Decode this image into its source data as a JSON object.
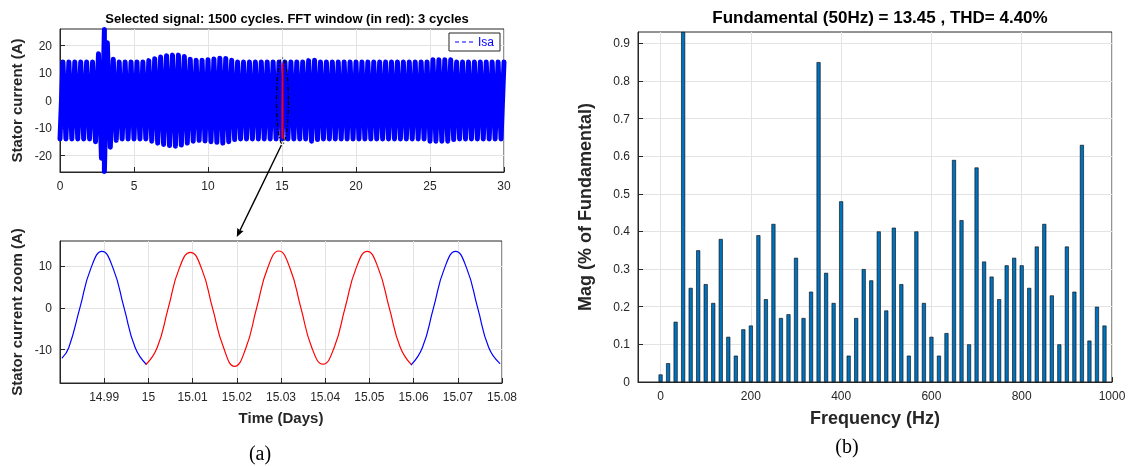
{
  "chart_data": [
    {
      "type": "line",
      "title": "Selected signal: 1500 cycles. FFT window (in red): 3 cycles",
      "ylabel": "Stator current (A)",
      "xlim": [
        0,
        30
      ],
      "xticks": [
        0,
        5,
        10,
        15,
        20,
        25,
        30
      ],
      "ylim": [
        -26,
        26
      ],
      "yticks": [
        -20,
        -10,
        0,
        10,
        20
      ],
      "grid": true,
      "legend": "top right",
      "series": [
        {
          "name": "Isa",
          "color": "#0000ff",
          "x": [
            0,
            0.2,
            0.4,
            0.6,
            0.8,
            1,
            1.2,
            1.4,
            1.6,
            1.8,
            2,
            2.2,
            2.4,
            2.6,
            2.8,
            3,
            3,
            3.2,
            3.4,
            3.6,
            3.8,
            4,
            4.2,
            4.4,
            4.6,
            4.8,
            5,
            5.2,
            5.4,
            5.6,
            5.8,
            6,
            6.2,
            6.4,
            6.6,
            6.8,
            7,
            7.2,
            7.4,
            7.6,
            7.8,
            8,
            8.2,
            8.4,
            8.6,
            8.8,
            9,
            9.2,
            9.4,
            9.6,
            9.8,
            10,
            10.2,
            10.4,
            10.6,
            10.8,
            11,
            11.2,
            11.4,
            11.6,
            11.8,
            12,
            12.2,
            12.4,
            12.6,
            12.8,
            13,
            13.2,
            13.4,
            13.6,
            13.8,
            14,
            14.2,
            14.4,
            14.6,
            14.8,
            15,
            15.2,
            15.4,
            15.6,
            15.8,
            16,
            16.2,
            16.4,
            16.6,
            16.8,
            17,
            17.2,
            17.4,
            17.6,
            17.8,
            18,
            18.2,
            18.4,
            18.6,
            18.8,
            19,
            19.2,
            19.4,
            19.6,
            19.8,
            20,
            20.2,
            20.4,
            20.6,
            20.8,
            21,
            21.2,
            21.4,
            21.6,
            21.8,
            22,
            22.2,
            22.4,
            22.6,
            22.8,
            23,
            23.2,
            23.4,
            23.6,
            23.8,
            24,
            24.2,
            24.4,
            24.6,
            24.8,
            25,
            25.2,
            25.4,
            25.6,
            25.8,
            26,
            26.2,
            26.4,
            26.6,
            26.8,
            27,
            27.2,
            27.4,
            27.6,
            27.8,
            28,
            28.2,
            28.4,
            28.6,
            28.8,
            29,
            29.2,
            29.4,
            29.6,
            29.8,
            30
          ],
          "values": [
            -14,
            14,
            -14,
            14,
            -14,
            14,
            -14,
            14,
            -14,
            14,
            -14,
            14,
            -15,
            17,
            -21,
            25.8,
            -25.8,
            21,
            -17,
            15,
            -14.5,
            14,
            -14,
            14,
            -14,
            14,
            -14,
            14,
            -14,
            14,
            -14,
            14.5,
            -14.8,
            15.2,
            -15.5,
            15.8,
            -16,
            16.3,
            -16.4,
            16.5,
            -16.6,
            16.5,
            -16.2,
            16,
            -15.5,
            15,
            -14.8,
            14.6,
            -14.5,
            14.6,
            -14.7,
            14.8,
            -15,
            15.1,
            -15.2,
            15.4,
            -15.5,
            15.3,
            -15,
            14.6,
            -14.2,
            14,
            -14,
            14,
            -14,
            14,
            -14,
            14,
            -14,
            14,
            -14,
            14,
            -14,
            14,
            -14,
            14,
            -14,
            14,
            -14,
            14,
            -14,
            14,
            -14,
            14,
            -14,
            14.5,
            -14.8,
            14.6,
            -14.2,
            14,
            -14,
            14,
            -14,
            14,
            -14,
            14,
            -14,
            14,
            -14,
            14,
            -14,
            14,
            -14,
            14,
            -14,
            14,
            -14,
            14,
            -14,
            14,
            -14,
            14,
            -14,
            14,
            -14,
            14,
            -14,
            14,
            -14,
            14,
            -14,
            14,
            -14,
            14,
            -14,
            14,
            -14.8,
            14.8,
            -14.8,
            14.8,
            -14.8,
            14.8,
            -14.8,
            14.8,
            -14.2,
            14,
            -14,
            14,
            -14,
            14,
            -14,
            14,
            -14,
            14,
            -14,
            14,
            -14,
            14,
            -14,
            14,
            -14,
            14
          ]
        },
        {
          "color": "#ff0000",
          "x": [
            15,
            15.01,
            15.02,
            15.03,
            15.04,
            15.05,
            15.06
          ],
          "values": [
            -13.5,
            13.3,
            -14,
            13.6,
            -13.5,
            13.5,
            -13.6
          ]
        }
      ]
    },
    {
      "type": "line",
      "xlabel": "Time (Days)",
      "ylabel": "Stator current zoom (A)",
      "xlim": [
        14.98,
        15.08
      ],
      "xticks": [
        14.99,
        15,
        15.01,
        15.02,
        15.03,
        15.04,
        15.05,
        15.06,
        15.07,
        15.08
      ],
      "ylim": [
        -18,
        16
      ],
      "yticks": [
        -10,
        0,
        10
      ],
      "grid": true,
      "annotations": [
        "(a)"
      ],
      "series": [
        {
          "color": "#0000ff",
          "x": [
            14.9805,
            14.982,
            14.9845,
            14.987,
            14.9895,
            14.992,
            14.9945,
            14.997,
            14.9995
          ],
          "values": [
            -12,
            -9.5,
            0,
            9.5,
            13.5,
            9.5,
            0,
            -9.5,
            -13.5
          ]
        },
        {
          "color": "#ff0000",
          "x": [
            14.9995,
            15.002,
            15.0045,
            15.007,
            15.0095,
            15.012,
            15.0145,
            15.017,
            15.0195,
            15.022,
            15.0245,
            15.027,
            15.0295,
            15.032,
            15.0345,
            15.037,
            15.0395,
            15.042,
            15.0445,
            15.047,
            15.0495,
            15.052,
            15.0545,
            15.057,
            15.0595
          ],
          "values": [
            -13.5,
            -9.5,
            0,
            9.5,
            13.3,
            9.5,
            0,
            -9.5,
            -14,
            -9.8,
            0,
            9.6,
            13.6,
            9.6,
            0,
            -9.6,
            -13.5,
            -9.6,
            0,
            9.5,
            13.5,
            9.5,
            0,
            -9.5,
            -13.6
          ]
        },
        {
          "color": "#0000ff",
          "x": [
            15.0595,
            15.062,
            15.0645,
            15.067,
            15.0695,
            15.072,
            15.0745,
            15.077,
            15.0795
          ],
          "values": [
            -13.6,
            -9.5,
            0,
            9.5,
            13.5,
            9.5,
            0,
            -9.5,
            -13.3
          ]
        }
      ]
    },
    {
      "type": "bar",
      "title": "Fundamental (50Hz) = 13.45 , THD= 4.40%",
      "xlabel": "Frequency (Hz)",
      "ylabel": "Mag (% of Fundamental)",
      "xlim": [
        -50,
        1000
      ],
      "xticks": [
        0,
        200,
        400,
        600,
        800,
        1000
      ],
      "ylim": [
        0,
        0.93
      ],
      "yticks": [
        0,
        0.1,
        0.2,
        0.3,
        0.4,
        0.5,
        0.6,
        0.7,
        0.8,
        0.9
      ],
      "grid": true,
      "annotations": [
        "(b)"
      ],
      "color": "#0072bd",
      "x": [
        0,
        16.67,
        33.33,
        50,
        66.67,
        83.33,
        100,
        116.67,
        133.33,
        150,
        166.67,
        183.33,
        200,
        216.67,
        233.33,
        250,
        266.67,
        283.33,
        300,
        316.67,
        333.33,
        350,
        366.67,
        383.33,
        400,
        416.67,
        433.33,
        450,
        466.67,
        483.33,
        500,
        516.67,
        533.33,
        550,
        566.67,
        583.33,
        600,
        616.67,
        633.33,
        650,
        666.67,
        683.33,
        700,
        716.67,
        733.33,
        750,
        766.67,
        783.33,
        800,
        816.67,
        833.33,
        850,
        866.67,
        883.33,
        900,
        916.67,
        933.33,
        950,
        966.67,
        983.33
      ],
      "values": [
        0.02,
        0.05,
        0.16,
        0.93,
        0.25,
        0.35,
        0.26,
        0.21,
        0.38,
        0.12,
        0.07,
        0.14,
        0.15,
        0.39,
        0.22,
        0.42,
        0.17,
        0.18,
        0.33,
        0.17,
        0.24,
        0.85,
        0.29,
        0.21,
        0.48,
        0.07,
        0.17,
        0.3,
        0.27,
        0.4,
        0.19,
        0.41,
        0.26,
        0.07,
        0.4,
        0.21,
        0.12,
        0.07,
        0.13,
        0.59,
        0.43,
        0.1,
        0.57,
        0.32,
        0.28,
        0.22,
        0.31,
        0.33,
        0.31,
        0.25,
        0.36,
        0.42,
        0.23,
        0.1,
        0.36,
        0.24,
        0.63,
        0.11,
        0.2,
        0.15
      ]
    }
  ]
}
